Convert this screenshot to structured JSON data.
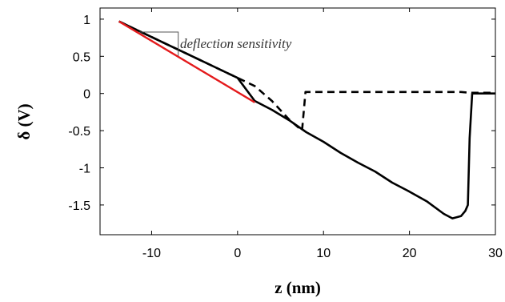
{
  "chart_data": {
    "type": "line",
    "xlabel": "z (nm)",
    "ylabel": "δ (V)",
    "xlim": [
      -16,
      30
    ],
    "ylim": [
      -1.9,
      1.15
    ],
    "xticks": [
      -10,
      0,
      10,
      20,
      30
    ],
    "yticks": [
      1,
      0.5,
      0,
      -0.5,
      -1,
      -1.5
    ],
    "xtick_labels": [
      "-10",
      "0",
      "10",
      "20",
      "30"
    ],
    "ytick_labels": [
      "1",
      "0.5",
      "0",
      "-0.5",
      "-1",
      "-1.5"
    ],
    "grid": false,
    "legend": "none",
    "annotation": {
      "text": "deflection sensitivity"
    },
    "series": [
      {
        "style": "dashed",
        "color": "#000000",
        "x": [
          -13.8,
          -12,
          -10,
          -8,
          -6,
          -4,
          -2,
          0,
          2,
          4,
          6,
          7.5,
          7.5,
          7.9,
          12,
          16,
          20,
          24,
          26,
          27,
          28,
          30
        ],
        "y": [
          0.97,
          0.87,
          0.76,
          0.65,
          0.54,
          0.43,
          0.32,
          0.21,
          0.1,
          -0.1,
          -0.35,
          -0.5,
          -0.5,
          0.02,
          0.02,
          0.02,
          0.02,
          0.02,
          0.02,
          0.01,
          0.01,
          0.01
        ]
      },
      {
        "style": "solid",
        "color": "#000000",
        "x": [
          -13.8,
          -12,
          -10,
          -8,
          -6,
          -4,
          -2,
          0,
          2,
          4,
          6,
          8,
          10,
          12,
          14,
          16,
          18,
          20,
          22,
          24,
          25,
          26,
          26.5,
          26.8,
          27,
          27.3,
          28,
          30
        ],
        "y": [
          0.97,
          0.87,
          0.76,
          0.65,
          0.54,
          0.43,
          0.32,
          0.21,
          -0.1,
          -0.22,
          -0.36,
          -0.52,
          -0.65,
          -0.8,
          -0.93,
          -1.05,
          -1.2,
          -1.32,
          -1.45,
          -1.62,
          -1.68,
          -1.65,
          -1.58,
          -1.5,
          -0.6,
          0.0,
          0.0,
          0.0
        ]
      },
      {
        "style": "solid",
        "color": "#e41a1c",
        "x": [
          -13.8,
          2
        ],
        "y": [
          0.97,
          -0.12
        ]
      }
    ]
  }
}
